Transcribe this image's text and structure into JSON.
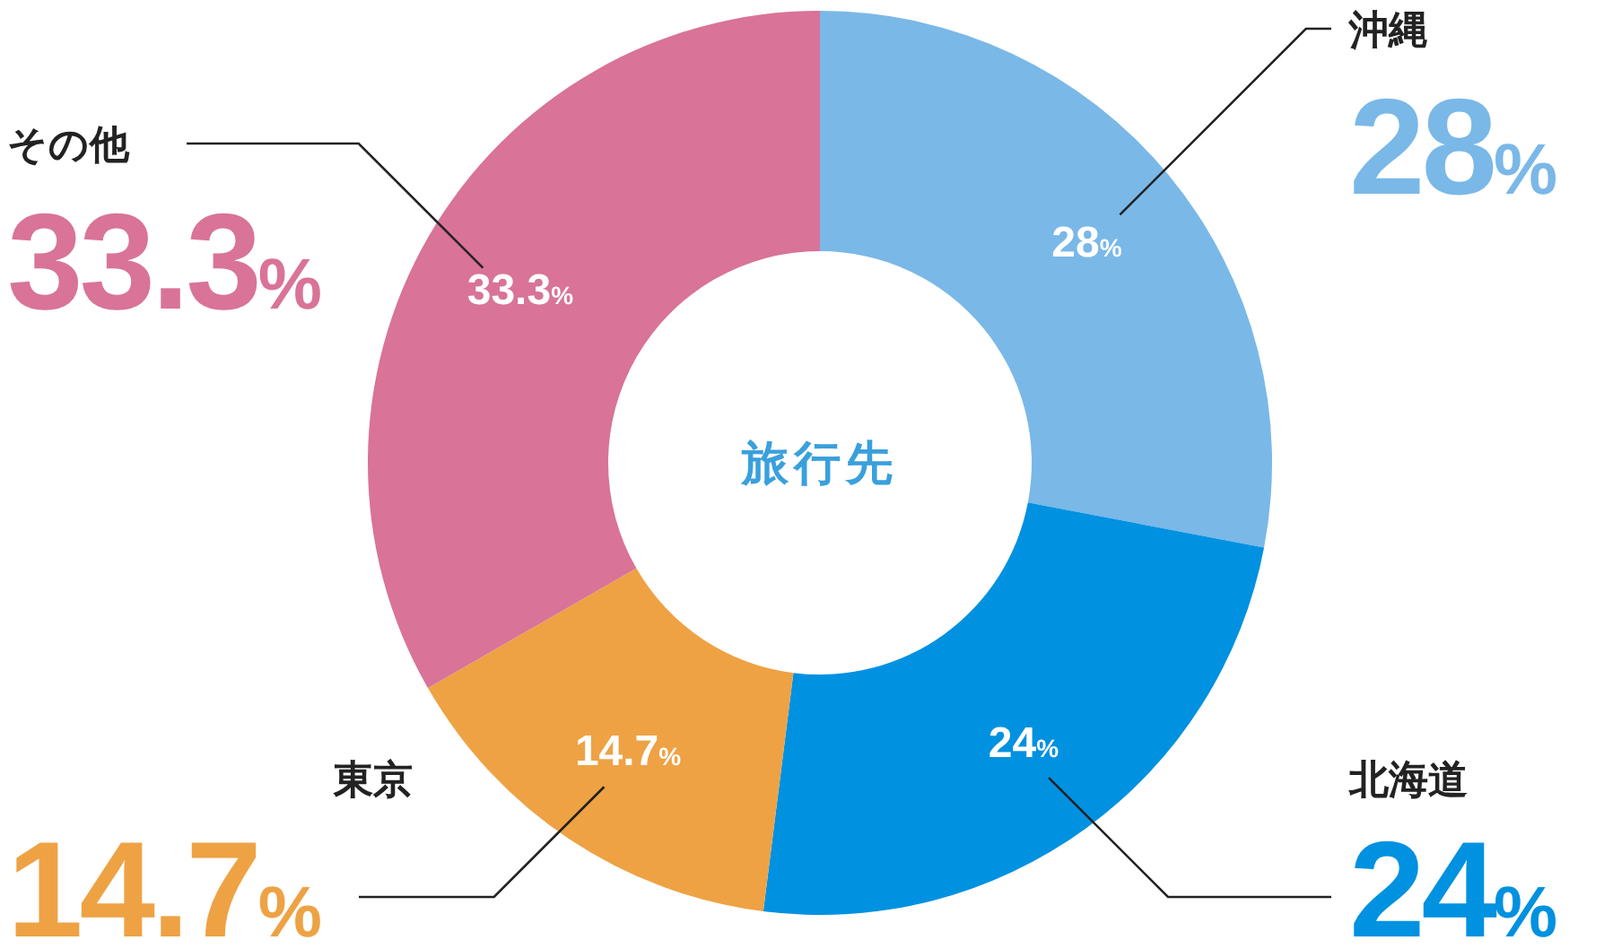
{
  "chart_data": {
    "type": "donut",
    "title": "旅行先",
    "categories": [
      "沖縄",
      "北海道",
      "東京",
      "その他"
    ],
    "values": [
      28,
      24,
      14.7,
      33.3
    ],
    "colors": [
      "#7ab8e8",
      "#0091e0",
      "#eea244",
      "#d97398"
    ],
    "value_labels": [
      "28%",
      "24%",
      "14.7%",
      "33.3%"
    ]
  }
}
